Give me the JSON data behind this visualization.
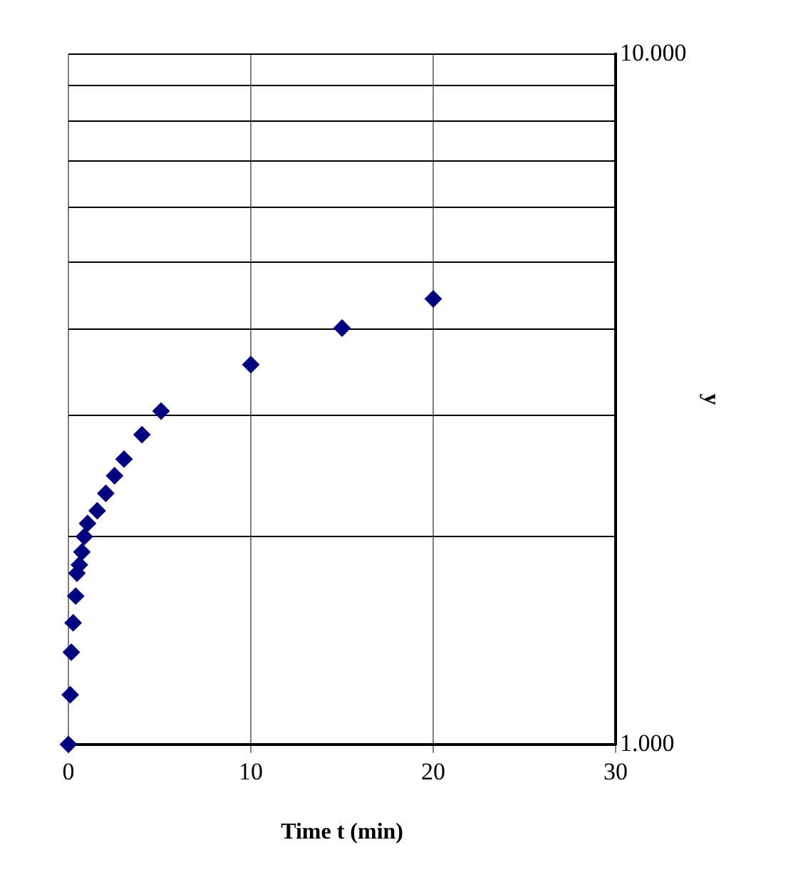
{
  "chart_data": {
    "type": "scatter",
    "xlabel": "Time t (min)",
    "ylabel": "y",
    "x": [
      0,
      0.1,
      0.16,
      0.26,
      0.4,
      0.47,
      0.6,
      0.74,
      0.87,
      1.05,
      1.58,
      2.05,
      2.53,
      3.05,
      4.03,
      5.08,
      10,
      15,
      20
    ],
    "series": [
      {
        "color": "#000080",
        "values": [
          1000,
          1180,
          1360,
          1500,
          1640,
          1770,
          1820,
          1900,
          2000,
          2090,
          2180,
          2310,
          2450,
          2590,
          2810,
          3040,
          3550,
          4010,
          4420
        ]
      }
    ],
    "xlim": [
      0,
      30
    ],
    "xticks": [
      0,
      10,
      20,
      30
    ],
    "ylim": [
      1000,
      10000
    ],
    "yticks": [
      {
        "value": 1000,
        "label": "1.000"
      },
      {
        "value": 2000,
        "label": null
      },
      {
        "value": 3000,
        "label": null
      },
      {
        "value": 4000,
        "label": null
      },
      {
        "value": 5000,
        "label": null
      },
      {
        "value": 6000,
        "label": null
      },
      {
        "value": 7000,
        "label": null
      },
      {
        "value": 8000,
        "label": null
      },
      {
        "value": 9000,
        "label": null
      },
      {
        "value": 10000,
        "label": "10.000"
      }
    ],
    "log": "y",
    "grid": true,
    "legend": false,
    "marker": "diamond"
  }
}
